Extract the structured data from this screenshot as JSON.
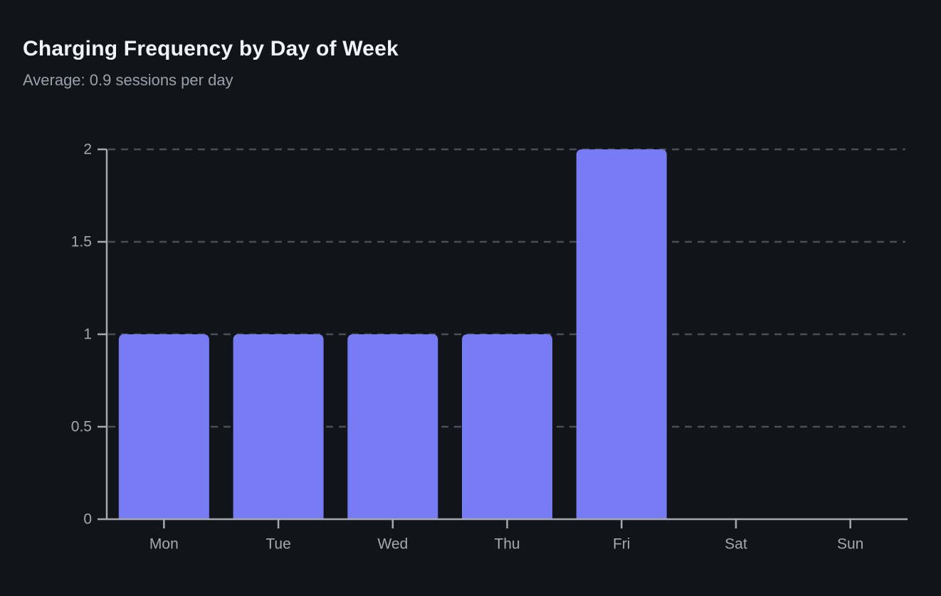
{
  "header": {
    "title": "Charging Frequency by Day of Week",
    "subtitle": "Average: 0.9 sessions per day"
  },
  "colors": {
    "background": "#111419",
    "bar": "#777bf4",
    "axis": "#a6a9ad",
    "gridline": "#4a4e54",
    "title_text": "#f2f5f7",
    "subtitle_text": "#9aa1a9",
    "tick_text": "#a3a9b0"
  },
  "chart_data": {
    "type": "bar",
    "title": "Charging Frequency by Day of Week",
    "subtitle": "Average: 0.9 sessions per day",
    "categories": [
      "Mon",
      "Tue",
      "Wed",
      "Thu",
      "Fri",
      "Sat",
      "Sun"
    ],
    "values": [
      1,
      1,
      1,
      1,
      2,
      0,
      0
    ],
    "xlabel": "",
    "ylabel": "",
    "ylim": [
      0,
      2
    ],
    "yticks": [
      0,
      0.5,
      1,
      1.5,
      2
    ],
    "grid": "horizontal-dashed",
    "legend": "none",
    "bar_corner_radius": 8
  }
}
